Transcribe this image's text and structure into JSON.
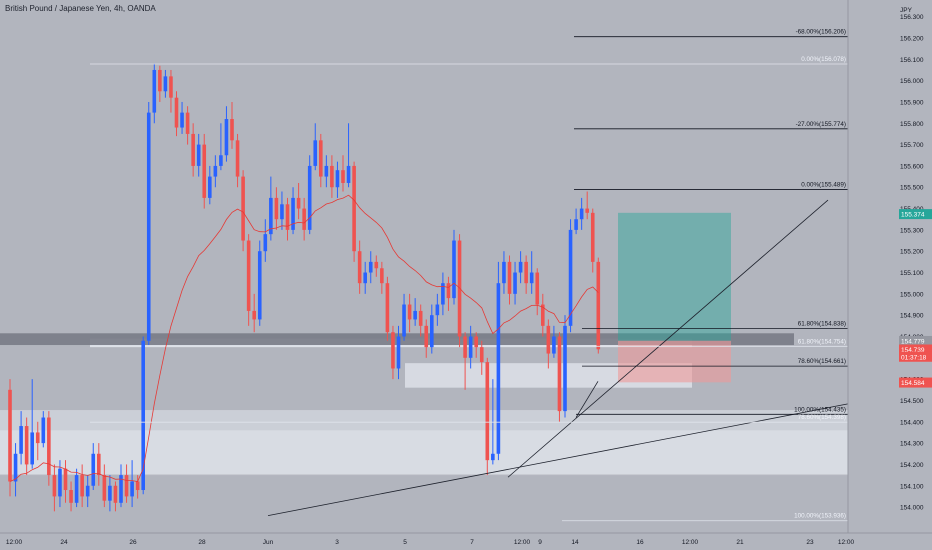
{
  "header": {
    "title": "British Pound / Japanese Yen, 4h, OANDA"
  },
  "theme": {
    "background": "#b2b5be",
    "up": "#2962ff",
    "down": "#ef5350",
    "ma": "#e53935",
    "zone": "#e0e3eb",
    "reward": "#26a69a",
    "risk": "#ef9a9a"
  },
  "chart_data": {
    "type": "candlestick",
    "title": "British Pound / Japanese Yen, 4h, OANDA",
    "currency": "JPY",
    "y_ticks": [
      "156.300",
      "156.200",
      "156.100",
      "156.000",
      "155.900",
      "155.800",
      "155.700",
      "155.600",
      "155.500",
      "155.400",
      "155.300",
      "155.200",
      "155.100",
      "155.000",
      "154.900",
      "154.800",
      "154.700",
      "154.600",
      "154.500",
      "154.400",
      "154.300",
      "154.200",
      "154.100",
      "154.000"
    ],
    "ylim": [
      153.93,
      156.35
    ],
    "x_ticks": [
      "12:00",
      "24",
      "26",
      "28",
      "Jun",
      "3",
      "5",
      "7",
      "9",
      "12:00",
      "14",
      "16",
      "12:00",
      "21",
      "23",
      "12:00"
    ],
    "fib_labels": [
      {
        "text": "-68.00%(156.206)",
        "price": 156.206
      },
      {
        "text": "0.00%(156.078)",
        "price": 156.078
      },
      {
        "text": "-27.00%(155.774)",
        "price": 155.774
      },
      {
        "text": "0.00%(155.489)",
        "price": 155.489
      },
      {
        "text": "61.80%(154.838)",
        "price": 154.838
      },
      {
        "text": "61.80%(154.754)",
        "price": 154.754
      },
      {
        "text": "78.60%(154.661)",
        "price": 154.661
      },
      {
        "text": "100.00%(154.435)",
        "price": 154.435
      },
      {
        "text": "78.60%(154.398)",
        "price": 154.398
      },
      {
        "text": "100.00%(153.936)",
        "price": 153.936
      }
    ],
    "price_tags": [
      {
        "text": "155.374",
        "price": 155.374,
        "color": "#26a69a"
      },
      {
        "text": "154.779",
        "price": 154.779,
        "color": "#9598a1"
      },
      {
        "text": "154.739",
        "price": 154.739,
        "color": "#ef5350"
      },
      {
        "text": "01:37:18",
        "price": 154.705,
        "color": "#ef5350"
      },
      {
        "text": "154.584",
        "price": 154.584,
        "color": "#ef5350"
      }
    ],
    "candles": [
      [
        154.55,
        154.12,
        154.6,
        154.05
      ],
      [
        154.12,
        154.25,
        154.3,
        154.05
      ],
      [
        154.25,
        154.38,
        154.45,
        154.2
      ],
      [
        154.38,
        154.2,
        154.42,
        154.15
      ],
      [
        154.2,
        154.35,
        154.6,
        154.18
      ],
      [
        154.35,
        154.3,
        154.4,
        154.22
      ],
      [
        154.3,
        154.42,
        154.45,
        154.28
      ],
      [
        154.42,
        154.15,
        154.45,
        154.1
      ],
      [
        154.15,
        154.05,
        154.2,
        153.98
      ],
      [
        154.05,
        154.18,
        154.22,
        154.0
      ],
      [
        154.18,
        154.08,
        154.22,
        154.02
      ],
      [
        154.08,
        154.02,
        154.12,
        153.98
      ],
      [
        154.02,
        154.15,
        154.18,
        154.0
      ],
      [
        154.15,
        154.05,
        154.2,
        154.0
      ],
      [
        154.05,
        154.1,
        154.15,
        154.0
      ],
      [
        154.1,
        154.25,
        154.3,
        154.08
      ],
      [
        154.25,
        154.15,
        154.3,
        154.1
      ],
      [
        154.15,
        154.03,
        154.2,
        154.0
      ],
      [
        154.03,
        154.1,
        154.15,
        153.98
      ],
      [
        154.1,
        154.02,
        154.12,
        153.98
      ],
      [
        154.02,
        154.15,
        154.2,
        154.0
      ],
      [
        154.15,
        154.05,
        154.2,
        154.02
      ],
      [
        154.05,
        154.12,
        154.22,
        154.0
      ],
      [
        154.12,
        154.08,
        154.15,
        154.04
      ],
      [
        154.08,
        154.78,
        154.8,
        154.06
      ],
      [
        154.78,
        155.85,
        155.9,
        154.76
      ],
      [
        155.85,
        156.05,
        156.08,
        155.8
      ],
      [
        156.05,
        155.95,
        156.07,
        155.9
      ],
      [
        155.95,
        156.02,
        156.05,
        155.92
      ],
      [
        156.02,
        155.92,
        156.05,
        155.85
      ],
      [
        155.92,
        155.78,
        155.95,
        155.74
      ],
      [
        155.78,
        155.85,
        155.9,
        155.75
      ],
      [
        155.85,
        155.75,
        155.88,
        155.7
      ],
      [
        155.75,
        155.6,
        155.8,
        155.55
      ],
      [
        155.6,
        155.7,
        155.75,
        155.55
      ],
      [
        155.7,
        155.45,
        155.75,
        155.4
      ],
      [
        155.45,
        155.55,
        155.6,
        155.42
      ],
      [
        155.55,
        155.6,
        155.65,
        155.5
      ],
      [
        155.6,
        155.65,
        155.8,
        155.58
      ],
      [
        155.65,
        155.82,
        155.88,
        155.62
      ],
      [
        155.82,
        155.72,
        155.9,
        155.68
      ],
      [
        155.72,
        155.55,
        155.75,
        155.5
      ],
      [
        155.55,
        155.25,
        155.58,
        155.2
      ],
      [
        155.25,
        154.92,
        155.28,
        154.85
      ],
      [
        154.92,
        154.88,
        155.0,
        154.82
      ],
      [
        154.88,
        155.2,
        155.25,
        154.85
      ],
      [
        155.2,
        155.28,
        155.35,
        155.15
      ],
      [
        155.28,
        155.45,
        155.55,
        155.25
      ],
      [
        155.45,
        155.35,
        155.5,
        155.3
      ],
      [
        155.35,
        155.42,
        155.48,
        155.3
      ],
      [
        155.42,
        155.3,
        155.45,
        155.25
      ],
      [
        155.3,
        155.45,
        155.5,
        155.28
      ],
      [
        155.45,
        155.4,
        155.52,
        155.35
      ],
      [
        155.4,
        155.3,
        155.45,
        155.25
      ],
      [
        155.3,
        155.6,
        155.65,
        155.28
      ],
      [
        155.6,
        155.72,
        155.8,
        155.58
      ],
      [
        155.72,
        155.55,
        155.75,
        155.5
      ],
      [
        155.55,
        155.6,
        155.65,
        155.5
      ],
      [
        155.6,
        155.5,
        155.65,
        155.45
      ],
      [
        155.5,
        155.58,
        155.62,
        155.45
      ],
      [
        155.58,
        155.52,
        155.65,
        155.48
      ],
      [
        155.52,
        155.6,
        155.8,
        155.5
      ],
      [
        155.6,
        155.2,
        155.62,
        155.15
      ],
      [
        155.2,
        155.05,
        155.25,
        155.0
      ],
      [
        155.05,
        155.1,
        155.15,
        155.0
      ],
      [
        155.1,
        155.15,
        155.2,
        155.05
      ],
      [
        155.15,
        155.12,
        155.18,
        155.08
      ],
      [
        155.12,
        155.05,
        155.15,
        155.0
      ],
      [
        155.05,
        154.82,
        155.08,
        154.78
      ],
      [
        154.82,
        154.65,
        154.85,
        154.6
      ],
      [
        154.65,
        154.8,
        154.85,
        154.6
      ],
      [
        154.8,
        154.95,
        155.0,
        154.78
      ],
      [
        154.95,
        154.88,
        155.0,
        154.82
      ],
      [
        154.88,
        154.92,
        154.98,
        154.85
      ],
      [
        154.92,
        154.85,
        154.95,
        154.8
      ],
      [
        154.85,
        154.75,
        154.88,
        154.7
      ],
      [
        154.75,
        154.9,
        154.95,
        154.72
      ],
      [
        154.9,
        154.95,
        155.0,
        154.85
      ],
      [
        154.95,
        155.05,
        155.1,
        154.9
      ],
      [
        155.05,
        154.98,
        155.08,
        154.92
      ],
      [
        154.98,
        155.25,
        155.3,
        154.95
      ],
      [
        155.25,
        154.8,
        155.28,
        154.75
      ],
      [
        154.8,
        154.7,
        154.82,
        154.55
      ],
      [
        154.7,
        154.8,
        154.85,
        154.65
      ],
      [
        154.8,
        154.75,
        154.82,
        154.7
      ],
      [
        154.75,
        154.68,
        154.78,
        154.62
      ],
      [
        154.68,
        154.22,
        154.7,
        154.15
      ],
      [
        154.22,
        154.25,
        154.6,
        154.2
      ],
      [
        154.25,
        155.05,
        155.15,
        154.22
      ],
      [
        155.05,
        155.15,
        155.2,
        155.0
      ],
      [
        155.15,
        155.0,
        155.18,
        154.95
      ],
      [
        155.0,
        155.1,
        155.15,
        154.95
      ],
      [
        155.1,
        155.15,
        155.2,
        155.05
      ],
      [
        155.15,
        155.05,
        155.18,
        155.0
      ],
      [
        155.05,
        155.1,
        155.2,
        155.0
      ],
      [
        155.1,
        154.95,
        155.12,
        154.9
      ],
      [
        154.95,
        154.85,
        155.0,
        154.8
      ],
      [
        154.85,
        154.72,
        154.88,
        154.65
      ],
      [
        154.72,
        154.8,
        154.85,
        154.7
      ],
      [
        154.8,
        154.45,
        154.82,
        154.4
      ],
      [
        154.45,
        154.85,
        154.9,
        154.42
      ],
      [
        154.85,
        155.3,
        155.35,
        154.82
      ],
      [
        155.3,
        155.35,
        155.4,
        155.28
      ],
      [
        155.35,
        155.4,
        155.45,
        155.3
      ],
      [
        155.4,
        155.38,
        155.48,
        155.35
      ],
      [
        155.38,
        155.15,
        155.4,
        155.1
      ],
      [
        155.15,
        154.74,
        155.17,
        154.72
      ]
    ]
  }
}
